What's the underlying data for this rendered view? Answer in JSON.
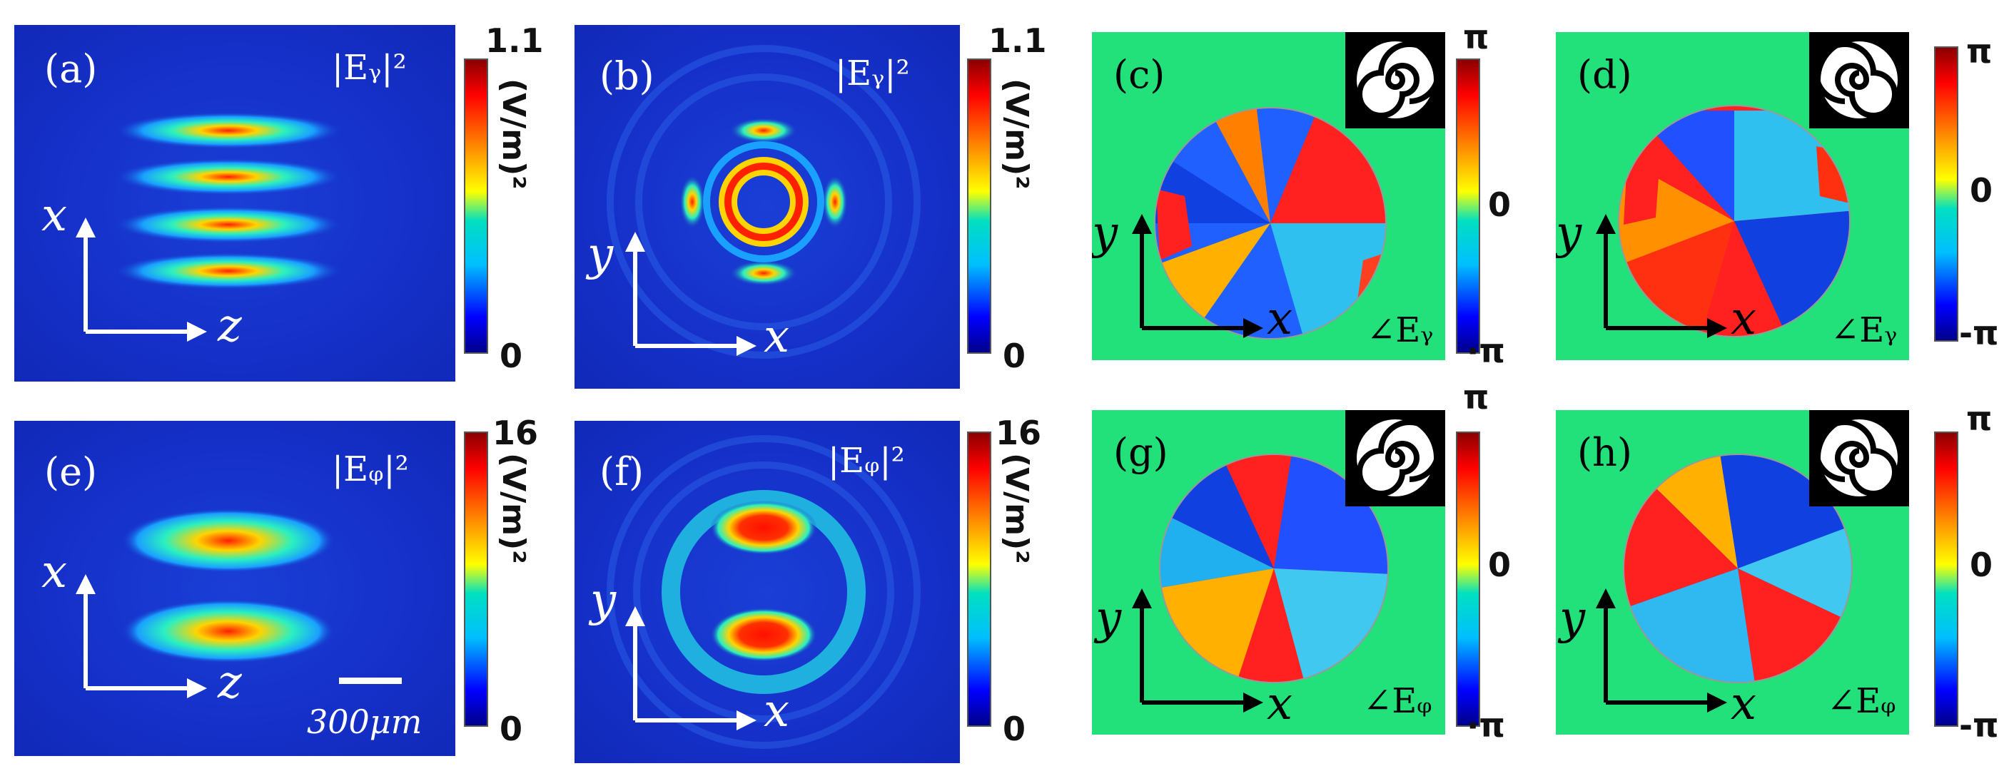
{
  "panels": {
    "a": {
      "tag": "(a)",
      "quantity": "|Eᵧ|²",
      "axis_v": "x",
      "axis_h": "z",
      "cbar_top": "1.1",
      "cbar_bottom": "0",
      "cbar_unit": "(V/m)²"
    },
    "b": {
      "tag": "(b)",
      "quantity": "|Eᵧ|²",
      "axis_v": "y",
      "axis_h": "x",
      "cbar_top": "1.1",
      "cbar_bottom": "0",
      "cbar_unit": "(V/m)²"
    },
    "c": {
      "tag": "(c)",
      "quantity": "∠Eᵧ",
      "axis_v": "y",
      "axis_h": "x"
    },
    "d": {
      "tag": "(d)",
      "quantity": "∠Eᵧ",
      "axis_v": "y",
      "axis_h": "x",
      "cbar_top": "π",
      "cbar_mid": "0",
      "cbar_bottom": "-π"
    },
    "e": {
      "tag": "(e)",
      "quantity": "|Eᵩ|²",
      "axis_v": "x",
      "axis_h": "z",
      "scale": "300μm",
      "cbar_top": "16",
      "cbar_bottom": "0",
      "cbar_unit": "(V/m)²"
    },
    "f": {
      "tag": "(f)",
      "quantity": "|Eᵩ|²",
      "axis_v": "y",
      "axis_h": "x",
      "cbar_top": "16",
      "cbar_bottom": "0",
      "cbar_unit": "(V/m)²"
    },
    "g": {
      "tag": "(g)",
      "quantity": "∠Eᵩ",
      "axis_v": "y",
      "axis_h": "x"
    },
    "h": {
      "tag": "(h)",
      "quantity": "∠Eᵩ",
      "axis_v": "y",
      "axis_h": "x",
      "cbar_top": "π",
      "cbar_mid": "0",
      "cbar_bottom": "-π"
    }
  },
  "shared_phase_bars": {
    "top": {
      "top": "π",
      "mid": "0",
      "bottom": "·π"
    },
    "bottom": {
      "top": "π",
      "mid": "0",
      "bottom": "·π"
    }
  }
}
